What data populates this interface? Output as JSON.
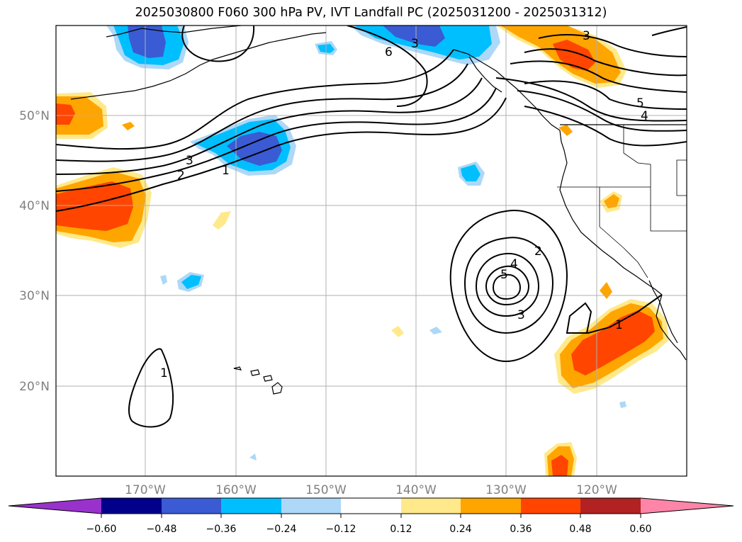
{
  "title": "2025030800 F060 300 hPa PV, IVT Landfall PC (2025031200 - 2025031312)",
  "lon_ticks": [
    {
      "lon": -170,
      "label": "170°W"
    },
    {
      "lon": -160,
      "label": "160°W"
    },
    {
      "lon": -150,
      "label": "150°W"
    },
    {
      "lon": -140,
      "label": "140°W"
    },
    {
      "lon": -130,
      "label": "130°W"
    },
    {
      "lon": -120,
      "label": "120°W"
    }
  ],
  "lat_ticks": [
    {
      "lat": 50,
      "label": "50°N"
    },
    {
      "lat": 40,
      "label": "40°N"
    },
    {
      "lat": 30,
      "label": "30°N"
    },
    {
      "lat": 20,
      "label": "20°N"
    }
  ],
  "colorbar": {
    "labels": [
      "−0.60",
      "−0.48",
      "−0.36",
      "−0.24",
      "−0.12",
      "0.12",
      "0.24",
      "0.36",
      "0.48",
      "0.60"
    ],
    "colors": [
      "#9932cc",
      "#00008b",
      "#3a5bd3",
      "#00bfff",
      "#add8f7",
      "#ffffff",
      "#ffe98a",
      "#ffa500",
      "#ff4500",
      "#b22222",
      "#ff85a8"
    ]
  },
  "contour_labels": [
    "3",
    "6",
    "3",
    "5",
    "4",
    "3",
    "2",
    "1",
    "2",
    "4",
    "5",
    "3",
    "1",
    "1"
  ]
}
